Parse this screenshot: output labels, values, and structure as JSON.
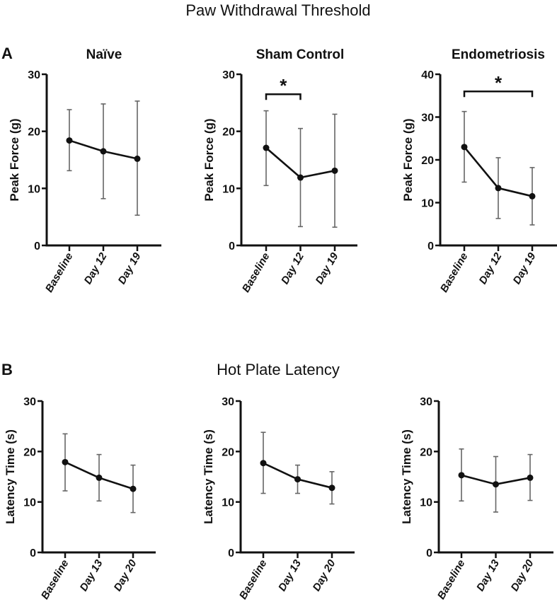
{
  "chart_data": [
    {
      "type": "line",
      "section_title": "Paw Withdrawal Threshold",
      "panel_letter": "A",
      "title": "Naïve",
      "ylabel": "Peak Force (g)",
      "ylim": [
        0,
        30
      ],
      "yticks": [
        "0",
        "10",
        "20",
        "30"
      ],
      "categories": [
        "Baseline",
        "Day 12",
        "Day 19"
      ],
      "values": [
        18.4,
        16.5,
        15.2
      ],
      "err_low": [
        13.1,
        8.2,
        5.3
      ],
      "err_high": [
        23.8,
        24.8,
        25.3
      ],
      "significance": null
    },
    {
      "type": "line",
      "title": "Sham Control",
      "ylabel": "Peak Force (g)",
      "ylim": [
        0,
        30
      ],
      "yticks": [
        "0",
        "10",
        "20",
        "30"
      ],
      "categories": [
        "Baseline",
        "Day 12",
        "Day 19"
      ],
      "values": [
        17.1,
        11.9,
        13.1
      ],
      "err_low": [
        10.5,
        3.3,
        3.2
      ],
      "err_high": [
        23.6,
        20.5,
        23.0
      ],
      "significance": {
        "from": 0,
        "to": 1,
        "label": "*",
        "level": 26.5
      }
    },
    {
      "type": "line",
      "title": "Endometriosis",
      "ylabel": "Peak Force (g)",
      "ylim": [
        0,
        40
      ],
      "yticks": [
        "0",
        "10",
        "20",
        "30",
        "40"
      ],
      "categories": [
        "Baseline",
        "Day 12",
        "Day 19"
      ],
      "values": [
        23.0,
        13.4,
        11.5
      ],
      "err_low": [
        14.8,
        6.3,
        4.8
      ],
      "err_high": [
        31.3,
        20.5,
        18.2
      ],
      "significance": {
        "from": 0,
        "to": 2,
        "label": "*",
        "level": 36
      }
    },
    {
      "type": "line",
      "section_title": "Hot Plate Latency",
      "panel_letter": "B",
      "title": "",
      "ylabel": "Latency Time (s)",
      "ylim": [
        0,
        30
      ],
      "yticks": [
        "0",
        "10",
        "20",
        "30"
      ],
      "categories": [
        "Baseline",
        "Day 13",
        "Day 20"
      ],
      "values": [
        17.9,
        14.8,
        12.6
      ],
      "err_low": [
        12.2,
        10.2,
        7.9
      ],
      "err_high": [
        23.5,
        19.4,
        17.3
      ],
      "significance": null
    },
    {
      "type": "line",
      "title": "",
      "ylabel": "Latency Time (s)",
      "ylim": [
        0,
        30
      ],
      "yticks": [
        "0",
        "10",
        "20",
        "30"
      ],
      "categories": [
        "Baseline",
        "Day 13",
        "Day 20"
      ],
      "values": [
        17.7,
        14.5,
        12.8
      ],
      "err_low": [
        11.7,
        11.7,
        9.6
      ],
      "err_high": [
        23.8,
        17.3,
        16.0
      ],
      "significance": null
    },
    {
      "type": "line",
      "title": "",
      "ylabel": "Latency Time (s)",
      "ylim": [
        0,
        30
      ],
      "yticks": [
        "0",
        "10",
        "20",
        "30"
      ],
      "categories": [
        "Baseline",
        "Day 13",
        "Day 20"
      ],
      "values": [
        15.3,
        13.5,
        14.8
      ],
      "err_low": [
        10.2,
        8.0,
        10.3
      ],
      "err_high": [
        20.5,
        19.0,
        19.4
      ],
      "significance": null
    }
  ]
}
